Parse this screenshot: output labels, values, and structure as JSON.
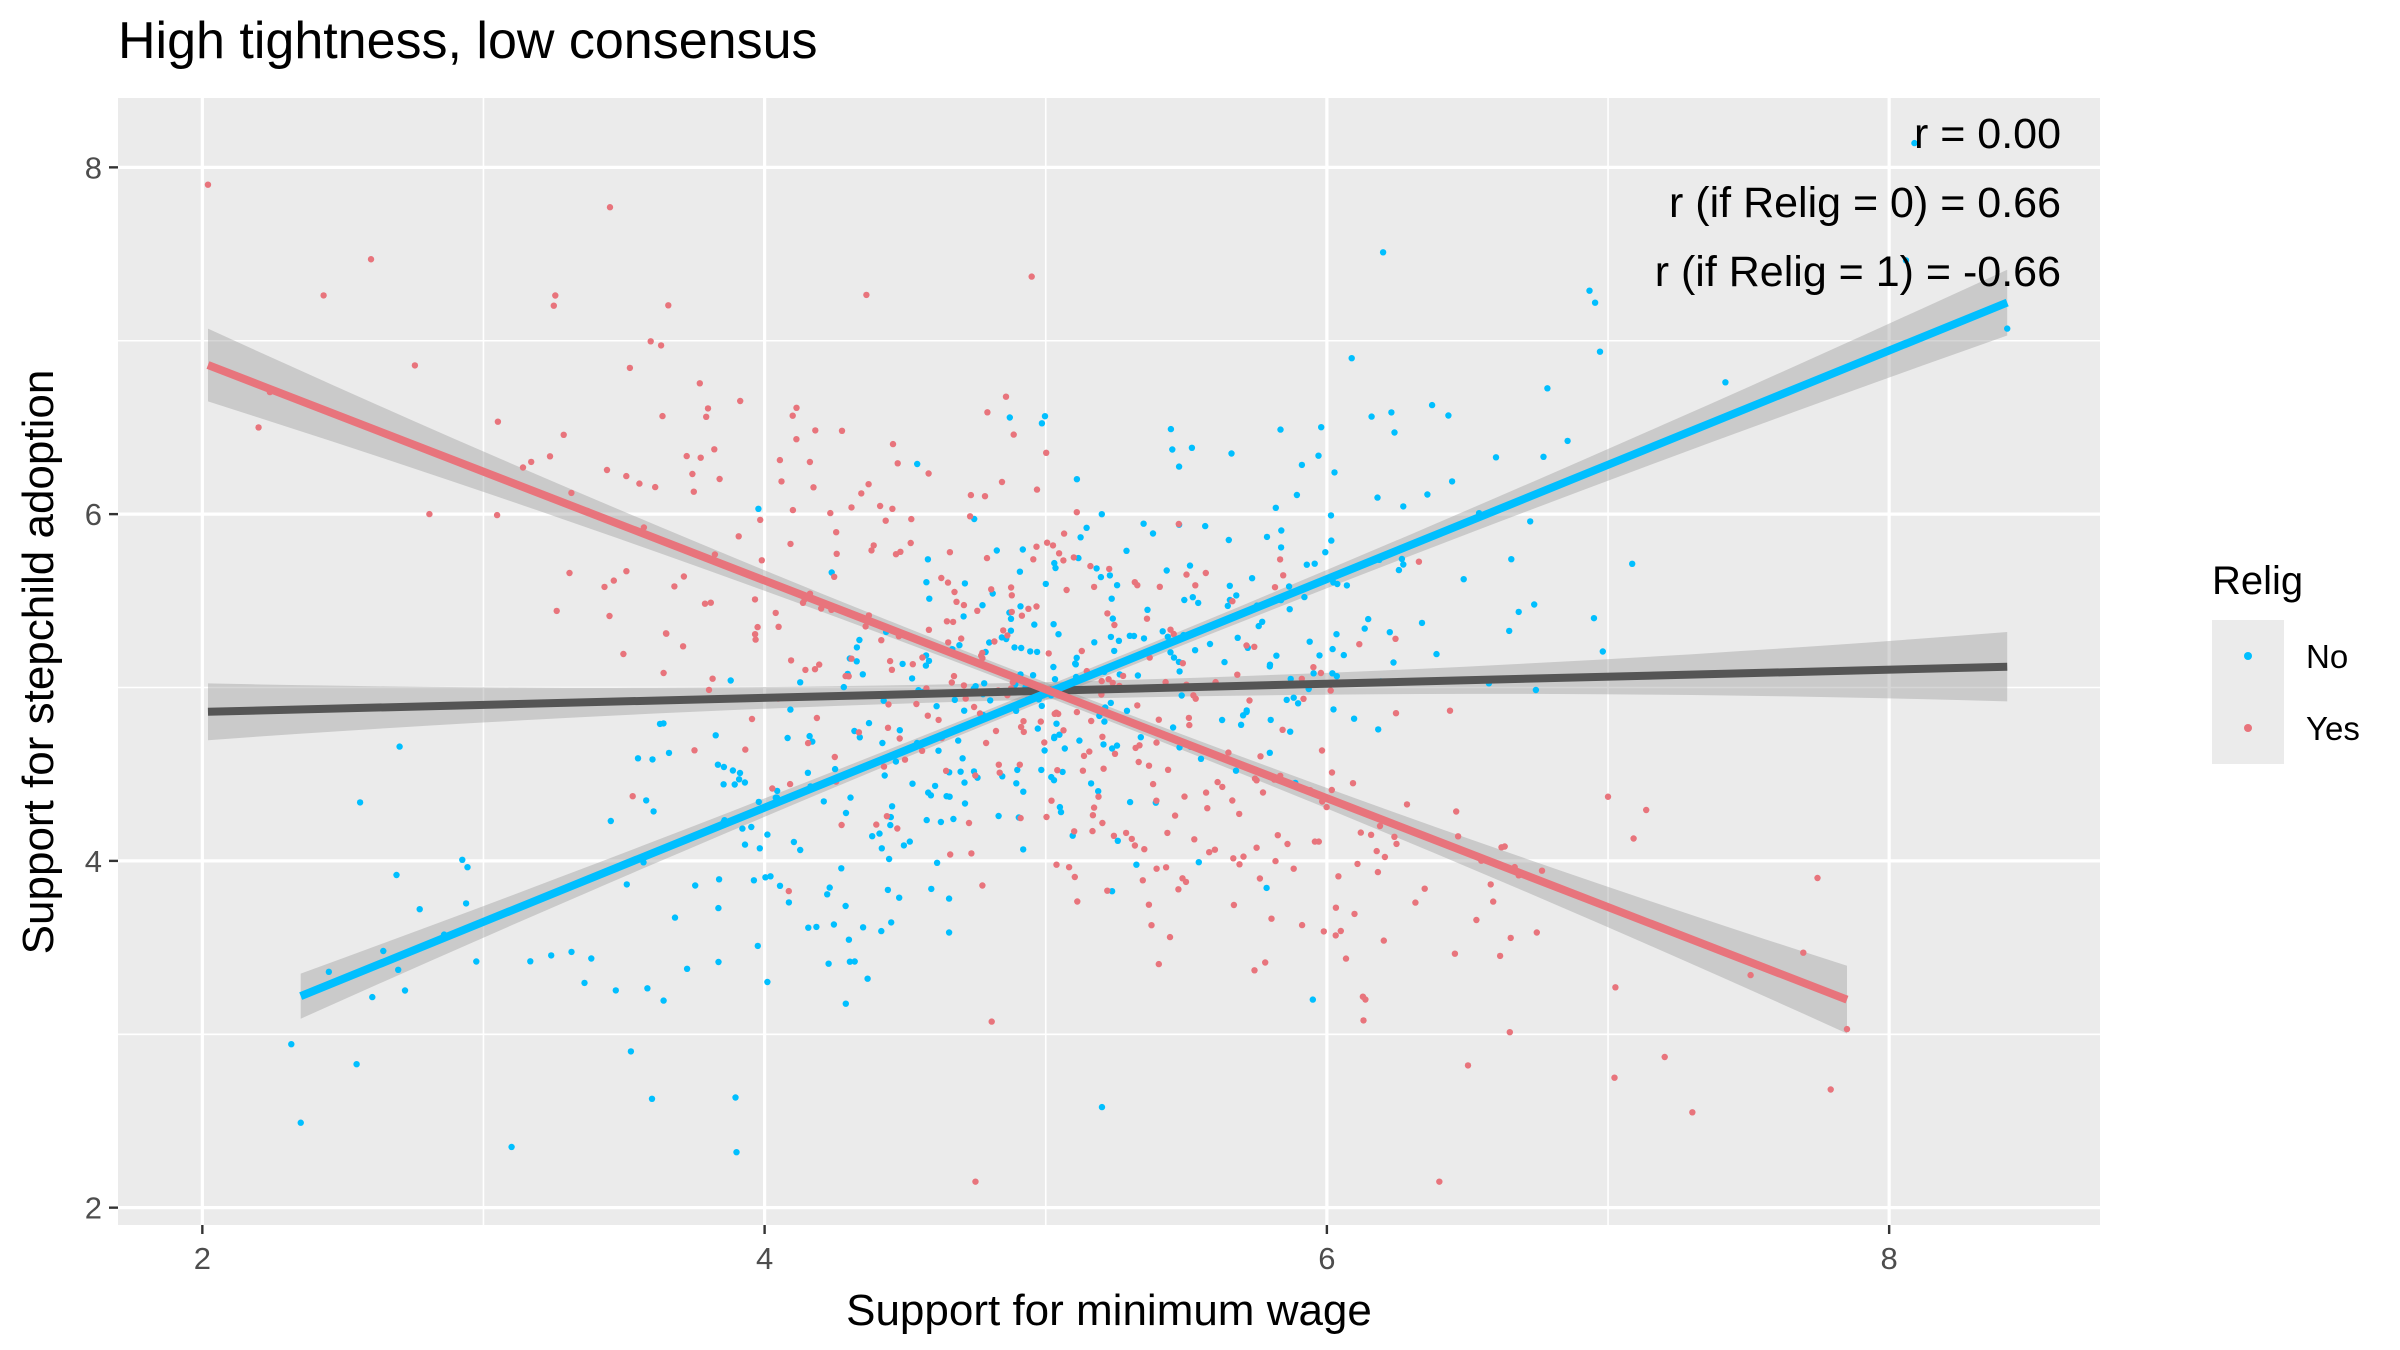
{
  "chart_data": {
    "type": "scatter",
    "title": "High tightness, low consensus",
    "xlabel": "Support for minimum wage",
    "ylabel": "Support for stepchild adoption",
    "xlim": [
      1.7,
      8.75
    ],
    "ylim": [
      1.9,
      8.4
    ],
    "x_ticks": [
      2,
      4,
      6,
      8
    ],
    "y_ticks": [
      2,
      4,
      6,
      8
    ],
    "x_tick_labels": [
      "2",
      "4",
      "6",
      "8"
    ],
    "y_tick_labels": [
      "2",
      "4",
      "6",
      "8"
    ],
    "grid": true,
    "legend": {
      "title": "Relig",
      "position": "right",
      "entries": [
        {
          "label": "No",
          "color": "#00bfff"
        },
        {
          "label": "Yes",
          "color": "#e8747c"
        }
      ]
    },
    "annotations": [
      "r = 0.00",
      "r (if Relig = 0) = 0.66",
      "r (if Relig = 1) = -0.66"
    ],
    "series": [
      {
        "name": "No",
        "color": "#00bfff",
        "n_points": 420,
        "fit": {
          "x": [
            2.35,
            8.42
          ],
          "y": [
            3.22,
            7.22
          ],
          "ci_halfwidth_end": 0.19,
          "ci_halfwidth_center": 0.04
        }
      },
      {
        "name": "Yes",
        "color": "#e8747c",
        "n_points": 420,
        "fit": {
          "x": [
            2.02,
            7.85
          ],
          "y": [
            6.86,
            3.2
          ],
          "ci_halfwidth_end": 0.21,
          "ci_halfwidth_center": 0.04
        }
      }
    ],
    "overall_fit": {
      "color": "#555555",
      "x": [
        2.02,
        8.42
      ],
      "y": [
        4.86,
        5.12
      ],
      "ci_halfwidth_end": 0.2,
      "ci_halfwidth_center": 0.05
    },
    "sample_points": {
      "No": [
        [
          8.09,
          8.14
        ],
        [
          8.42,
          7.07
        ],
        [
          2.35,
          2.49
        ],
        [
          6.2,
          7.51
        ],
        [
          3.1,
          2.35
        ],
        [
          3.9,
          2.32
        ],
        [
          5.2,
          2.58
        ],
        [
          2.45,
          3.36
        ],
        [
          6.95,
          5.4
        ],
        [
          5.95,
          3.2
        ]
      ],
      "Yes": [
        [
          2.02,
          7.9
        ],
        [
          2.6,
          7.47
        ],
        [
          3.45,
          7.77
        ],
        [
          4.75,
          2.15
        ],
        [
          6.4,
          2.15
        ],
        [
          7.85,
          3.03
        ],
        [
          7.3,
          2.55
        ],
        [
          7.0,
          4.37
        ],
        [
          2.2,
          6.5
        ],
        [
          4.95,
          7.37
        ]
      ]
    }
  }
}
